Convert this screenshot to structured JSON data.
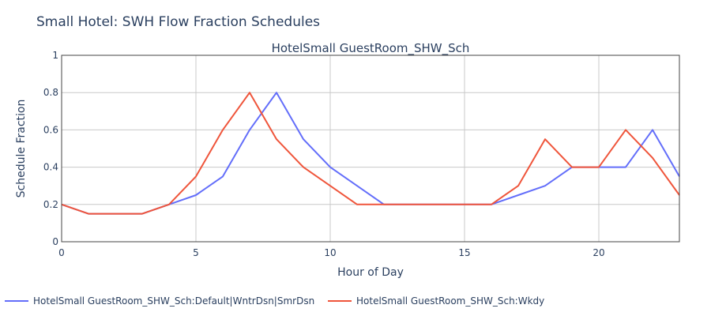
{
  "page_title": "Small Hotel: SWH Flow Fraction Schedules",
  "chart_data": {
    "type": "line",
    "title": "HotelSmall GuestRoom_SHW_Sch",
    "xlabel": "Hour of Day",
    "ylabel": "Schedule Fraction",
    "xlim": [
      0,
      23
    ],
    "ylim": [
      0,
      1
    ],
    "x_ticks": [
      0,
      5,
      10,
      15,
      20
    ],
    "y_ticks": [
      0,
      0.2,
      0.4,
      0.6,
      0.8,
      1
    ],
    "y_tick_labels": [
      "0",
      "0.2",
      "0.4",
      "0.6",
      "0.8",
      "1"
    ],
    "grid": true,
    "legend_position": "bottom",
    "x": [
      0,
      1,
      2,
      3,
      4,
      5,
      6,
      7,
      8,
      9,
      10,
      11,
      12,
      13,
      14,
      15,
      16,
      17,
      18,
      19,
      20,
      21,
      22,
      23
    ],
    "series": [
      {
        "name": "HotelSmall GuestRoom_SHW_Sch:Default|WntrDsn|SmrDsn",
        "color": "#636efa",
        "values": [
          0.2,
          0.15,
          0.15,
          0.15,
          0.2,
          0.25,
          0.35,
          0.6,
          0.8,
          0.55,
          0.4,
          0.3,
          0.2,
          0.2,
          0.2,
          0.2,
          0.2,
          0.25,
          0.3,
          0.4,
          0.4,
          0.4,
          0.6,
          0.35
        ]
      },
      {
        "name": "HotelSmall GuestRoom_SHW_Sch:Wkdy",
        "color": "#ef553b",
        "values": [
          0.2,
          0.15,
          0.15,
          0.15,
          0.2,
          0.35,
          0.6,
          0.8,
          0.55,
          0.4,
          0.3,
          0.2,
          0.2,
          0.2,
          0.2,
          0.2,
          0.2,
          0.3,
          0.55,
          0.4,
          0.4,
          0.6,
          0.45,
          0.25
        ]
      }
    ]
  }
}
